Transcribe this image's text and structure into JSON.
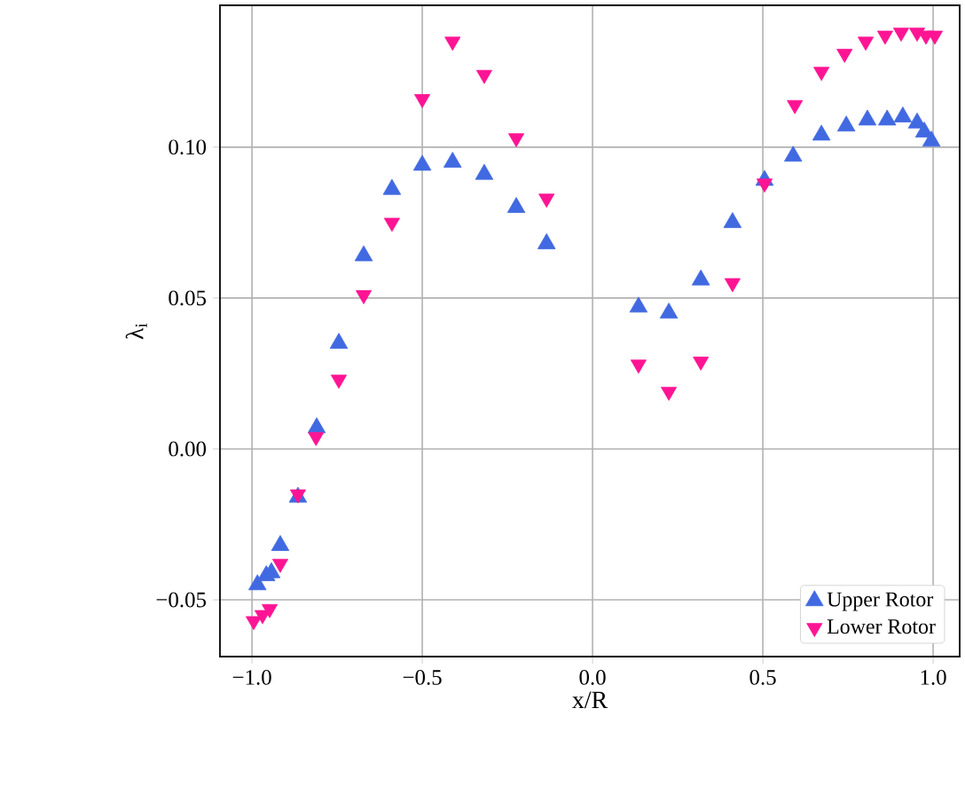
{
  "chart_data": {
    "type": "scatter",
    "xlabel": "x/R",
    "ylabel": "λ$_{i}$",
    "xlim": [
      -1.094,
      1.078
    ],
    "ylim": [
      -0.0688,
      0.147
    ],
    "xticks": [
      {
        "value": -1,
        "label": "−1.0"
      },
      {
        "value": -0.5,
        "label": "−0.5"
      },
      {
        "value": 0,
        "label": "0.0"
      },
      {
        "value": 0.5,
        "label": "0.5"
      },
      {
        "value": 1,
        "label": "1.0"
      }
    ],
    "yticks": [
      {
        "value": -0.05,
        "label": "−0.05"
      },
      {
        "value": 0,
        "label": "0.00"
      },
      {
        "value": 0.05,
        "label": "0.05"
      },
      {
        "value": 0.1,
        "label": "0.10"
      }
    ],
    "grid": true,
    "legend": "bottom right",
    "series": [
      {
        "name": "Upper Rotor",
        "color": "#4169e1",
        "marker": "triangle",
        "x": [
          -0.984,
          -0.958,
          -0.943,
          -0.917,
          -0.865,
          -0.81,
          -0.745,
          -0.672,
          -0.589,
          -0.5,
          -0.411,
          -0.318,
          -0.224,
          -0.135,
          0.135,
          0.224,
          0.318,
          0.411,
          0.505,
          0.589,
          0.672,
          0.745,
          0.807,
          0.865,
          0.911,
          0.953,
          0.974,
          0.995
        ],
        "values": [
          -0.045,
          -0.042,
          -0.041,
          -0.032,
          -0.016,
          0.007,
          0.035,
          0.064,
          0.086,
          0.094,
          0.095,
          0.091,
          0.08,
          0.068,
          0.047,
          0.045,
          0.056,
          0.075,
          0.089,
          0.097,
          0.104,
          0.107,
          0.109,
          0.109,
          0.11,
          0.108,
          0.105,
          0.102
        ]
      },
      {
        "name": "Lower Rotor",
        "color": "#ff1493",
        "marker": "triangle_down",
        "x": [
          -0.995,
          -0.969,
          -0.948,
          -0.917,
          -0.865,
          -0.812,
          -0.745,
          -0.672,
          -0.589,
          -0.5,
          -0.411,
          -0.318,
          -0.224,
          -0.135,
          0.135,
          0.224,
          0.318,
          0.411,
          0.505,
          0.594,
          0.672,
          0.74,
          0.802,
          0.859,
          0.906,
          0.953,
          0.979,
          1.005
        ],
        "values": [
          -0.057,
          -0.055,
          -0.053,
          -0.038,
          -0.015,
          0.004,
          0.023,
          0.051,
          0.075,
          0.116,
          0.135,
          0.124,
          0.103,
          0.083,
          0.028,
          0.019,
          0.029,
          0.055,
          0.088,
          0.114,
          0.125,
          0.131,
          0.135,
          0.137,
          0.138,
          0.138,
          0.137,
          0.137
        ]
      }
    ]
  }
}
